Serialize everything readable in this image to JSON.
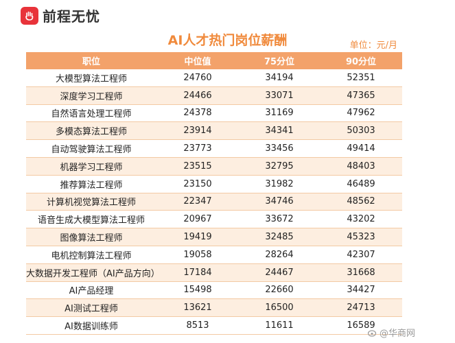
{
  "brand": {
    "name": "前程无忧",
    "logo_icon": "hand-icon",
    "color": "#e8333a"
  },
  "header": {
    "title": "AI人才热门岗位薪酬",
    "unit": "单位：元/月"
  },
  "watermark": {
    "text": "@华商网"
  },
  "colors": {
    "accent": "#f08a3c",
    "header_bg": "#f3a26a",
    "stripe": "#fdeee0"
  },
  "chart_data": {
    "type": "table",
    "title": "AI人才热门岗位薪酬",
    "unit": "单位：元/月",
    "columns": [
      "职位",
      "中位值",
      "75分位",
      "90分位"
    ],
    "rows": [
      [
        "大模型算法工程师",
        "24760",
        "34194",
        "52351"
      ],
      [
        "深度学习工程师",
        "24466",
        "33071",
        "47365"
      ],
      [
        "自然语言处理工程师",
        "24378",
        "31169",
        "47962"
      ],
      [
        "多模态算法工程师",
        "23914",
        "34341",
        "50303"
      ],
      [
        "自动驾驶算法工程师",
        "23773",
        "33456",
        "49414"
      ],
      [
        "机器学习工程师",
        "23515",
        "32795",
        "48403"
      ],
      [
        "推荐算法工程师",
        "23150",
        "31982",
        "46489"
      ],
      [
        "计算机视觉算法工程师",
        "22347",
        "34746",
        "48562"
      ],
      [
        "语音生成大模型算法工程师",
        "20967",
        "33672",
        "43202"
      ],
      [
        "图像算法工程师",
        "19419",
        "32485",
        "45323"
      ],
      [
        "电机控制算法工程师",
        "19058",
        "28264",
        "42307"
      ],
      [
        "大数据开发工程师（AI产品方向）",
        "17184",
        "24467",
        "31668"
      ],
      [
        "AI产品经理",
        "15498",
        "22660",
        "34427"
      ],
      [
        "AI测试工程师",
        "13621",
        "16500",
        "24713"
      ],
      [
        "AI数据训练师",
        "8513",
        "11611",
        "16589"
      ]
    ]
  }
}
